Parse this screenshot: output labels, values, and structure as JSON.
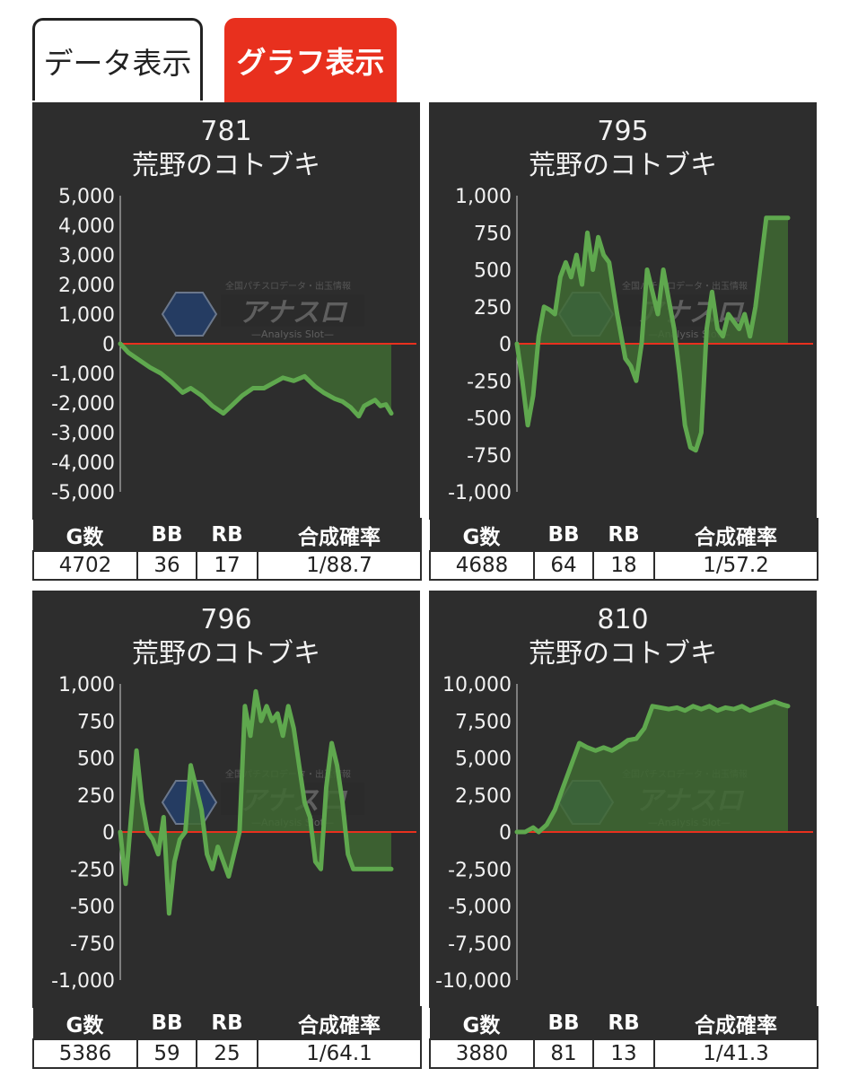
{
  "tabs": {
    "data_label": "データ表示",
    "graph_label": "グラフ表示"
  },
  "stats_headers": [
    "G数",
    "BB",
    "RB",
    "合成確率"
  ],
  "watermark": {
    "main": "アナスロ",
    "sub": "—Analysis Slot—",
    "top": "全国パチスロデータ・出玉情報"
  },
  "colors": {
    "line": "#5fa84e",
    "fill": "#3f6a32",
    "zero_line": "#e8301e",
    "panel": "#2d2d2d",
    "active_tab": "#e8301e"
  },
  "chart_data": [
    {
      "type": "area",
      "machine_number": "781",
      "machine_name": "荒野のコトブキ",
      "ylim": [
        -5000,
        5000
      ],
      "yticks": [
        "5,000",
        "4,000",
        "3,000",
        "2,000",
        "1,000",
        "0",
        "-1,000",
        "-2,000",
        "-3,000",
        "-4,000",
        "-5,000"
      ],
      "x": [
        0,
        0.03,
        0.07,
        0.11,
        0.15,
        0.19,
        0.23,
        0.26,
        0.3,
        0.34,
        0.38,
        0.41,
        0.45,
        0.49,
        0.53,
        0.56,
        0.6,
        0.64,
        0.68,
        0.72,
        0.75,
        0.79,
        0.82,
        0.85,
        0.88,
        0.9,
        0.92,
        0.94,
        0.96,
        0.98,
        1.0
      ],
      "values": [
        0,
        -300,
        -550,
        -800,
        -1000,
        -1300,
        -1650,
        -1500,
        -1750,
        -2100,
        -2350,
        -2100,
        -1750,
        -1500,
        -1500,
        -1350,
        -1150,
        -1250,
        -1100,
        -1450,
        -1650,
        -1850,
        -1950,
        -2150,
        -2450,
        -2100,
        -2000,
        -1900,
        -2100,
        -2050,
        -2350
      ],
      "stats": {
        "games": "4702",
        "bb": "36",
        "rb": "17",
        "prob": "1/88.7"
      }
    },
    {
      "type": "area",
      "machine_number": "795",
      "machine_name": "荒野のコトブキ",
      "ylim": [
        -1000,
        1000
      ],
      "yticks": [
        "1,000",
        "750",
        "500",
        "250",
        "0",
        "-250",
        "-500",
        "-750",
        "-1,000"
      ],
      "x": [
        0,
        0.02,
        0.04,
        0.06,
        0.08,
        0.1,
        0.12,
        0.14,
        0.16,
        0.18,
        0.2,
        0.22,
        0.24,
        0.26,
        0.28,
        0.3,
        0.32,
        0.34,
        0.37,
        0.4,
        0.42,
        0.44,
        0.46,
        0.48,
        0.5,
        0.52,
        0.54,
        0.56,
        0.58,
        0.6,
        0.62,
        0.64,
        0.66,
        0.68,
        0.7,
        0.72,
        0.74,
        0.76,
        0.78,
        0.8,
        0.82,
        0.84,
        0.86,
        0.88,
        0.9,
        0.92,
        0.94,
        0.96,
        0.98,
        1.0
      ],
      "values": [
        0,
        -250,
        -550,
        -350,
        50,
        250,
        230,
        200,
        450,
        550,
        450,
        600,
        400,
        750,
        500,
        720,
        600,
        550,
        200,
        -100,
        -150,
        -250,
        0,
        500,
        350,
        200,
        500,
        300,
        100,
        -200,
        -550,
        -700,
        -720,
        -600,
        100,
        350,
        100,
        50,
        200,
        150,
        100,
        200,
        50,
        250,
        550,
        850,
        850,
        850,
        850,
        850
      ],
      "stats": {
        "games": "4688",
        "bb": "64",
        "rb": "18",
        "prob": "1/57.2"
      }
    },
    {
      "type": "area",
      "machine_number": "796",
      "machine_name": "荒野のコトブキ",
      "ylim": [
        -1000,
        1000
      ],
      "yticks": [
        "1,000",
        "750",
        "500",
        "250",
        "0",
        "-250",
        "-500",
        "-750",
        "-1,000"
      ],
      "x": [
        0,
        0.02,
        0.04,
        0.06,
        0.08,
        0.1,
        0.12,
        0.14,
        0.16,
        0.18,
        0.2,
        0.22,
        0.24,
        0.26,
        0.28,
        0.3,
        0.32,
        0.34,
        0.36,
        0.38,
        0.4,
        0.42,
        0.44,
        0.46,
        0.48,
        0.5,
        0.52,
        0.54,
        0.56,
        0.58,
        0.6,
        0.62,
        0.64,
        0.66,
        0.68,
        0.7,
        0.72,
        0.74,
        0.76,
        0.78,
        0.8,
        0.82,
        0.84,
        0.86,
        0.88,
        0.9,
        0.92,
        0.94,
        0.96,
        0.98,
        1.0
      ],
      "values": [
        0,
        -350,
        100,
        550,
        200,
        0,
        -50,
        -150,
        100,
        -550,
        -200,
        -50,
        0,
        450,
        300,
        150,
        -150,
        -250,
        -100,
        -200,
        -300,
        -150,
        0,
        850,
        650,
        950,
        750,
        850,
        750,
        800,
        650,
        850,
        700,
        450,
        200,
        100,
        -200,
        -250,
        300,
        600,
        450,
        200,
        -150,
        -250,
        -250,
        -250,
        -250,
        -250,
        -250,
        -250,
        -250
      ],
      "stats": {
        "games": "5386",
        "bb": "59",
        "rb": "25",
        "prob": "1/64.1"
      }
    },
    {
      "type": "area",
      "machine_number": "810",
      "machine_name": "荒野のコトブキ",
      "ylim": [
        -10000,
        10000
      ],
      "yticks": [
        "10,000",
        "7,500",
        "5,000",
        "2,500",
        "0",
        "-2,500",
        "-5,000",
        "-7,500",
        "-10,000"
      ],
      "x": [
        0,
        0.03,
        0.06,
        0.08,
        0.11,
        0.14,
        0.17,
        0.2,
        0.23,
        0.26,
        0.29,
        0.32,
        0.35,
        0.38,
        0.41,
        0.44,
        0.47,
        0.5,
        0.53,
        0.56,
        0.59,
        0.62,
        0.65,
        0.68,
        0.71,
        0.74,
        0.77,
        0.8,
        0.83,
        0.86,
        0.89,
        0.92,
        0.95,
        0.98,
        1.0
      ],
      "values": [
        0,
        0,
        300,
        0,
        500,
        1500,
        3000,
        4500,
        6000,
        5700,
        5500,
        5700,
        5500,
        5800,
        6200,
        6300,
        7000,
        8500,
        8400,
        8300,
        8400,
        8200,
        8500,
        8300,
        8500,
        8200,
        8400,
        8300,
        8500,
        8200,
        8400,
        8600,
        8800,
        8600,
        8500
      ],
      "stats": {
        "games": "3880",
        "bb": "81",
        "rb": "13",
        "prob": "1/41.3"
      }
    }
  ]
}
